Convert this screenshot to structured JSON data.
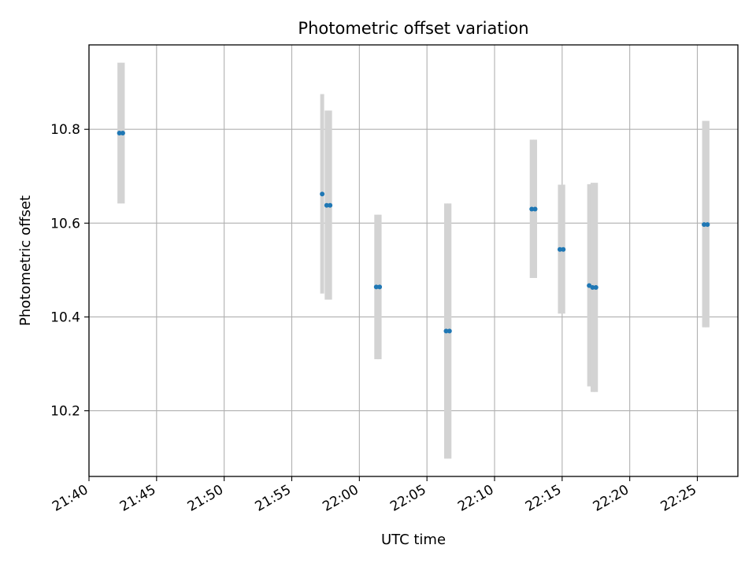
{
  "chart_data": {
    "type": "scatter",
    "title": "Photometric offset variation",
    "xlabel": "UTC time",
    "ylabel": "Photometric offset",
    "x_axis_type": "time",
    "xlim": [
      "21:40",
      "22:28"
    ],
    "ylim": [
      10.06,
      10.98
    ],
    "x_ticks": [
      "21:40",
      "21:45",
      "21:50",
      "21:55",
      "22:00",
      "22:05",
      "22:10",
      "22:15",
      "22:20",
      "22:25"
    ],
    "y_ticks": [
      10.2,
      10.4,
      10.6,
      10.8
    ],
    "y_tick_labels": [
      "10.2",
      "10.4",
      "10.6",
      "10.8"
    ],
    "grid": true,
    "marker_color": "#1f77b4",
    "errorbar_color": "#d3d3d3",
    "series": [
      {
        "points": [
          {
            "x": "21:42:15",
            "y": 10.792,
            "ylow": 10.642,
            "yhigh": 10.942
          },
          {
            "x": "21:42:30",
            "y": 10.792,
            "ylow": 10.642,
            "yhigh": 10.942
          },
          {
            "x": "21:57:15",
            "y": 10.662,
            "ylow": 10.45,
            "yhigh": 10.875
          },
          {
            "x": "21:57:35",
            "y": 10.638,
            "ylow": 10.437,
            "yhigh": 10.84
          },
          {
            "x": "21:57:50",
            "y": 10.638,
            "ylow": 10.437,
            "yhigh": 10.84
          },
          {
            "x": "22:01:15",
            "y": 10.464,
            "ylow": 10.31,
            "yhigh": 10.618
          },
          {
            "x": "22:01:30",
            "y": 10.464,
            "ylow": 10.31,
            "yhigh": 10.618
          },
          {
            "x": "22:06:25",
            "y": 10.37,
            "ylow": 10.098,
            "yhigh": 10.642
          },
          {
            "x": "22:06:40",
            "y": 10.37,
            "ylow": 10.098,
            "yhigh": 10.642
          },
          {
            "x": "22:12:45",
            "y": 10.63,
            "ylow": 10.483,
            "yhigh": 10.778
          },
          {
            "x": "22:13:00",
            "y": 10.63,
            "ylow": 10.483,
            "yhigh": 10.778
          },
          {
            "x": "22:14:50",
            "y": 10.544,
            "ylow": 10.407,
            "yhigh": 10.682
          },
          {
            "x": "22:15:05",
            "y": 10.544,
            "ylow": 10.407,
            "yhigh": 10.682
          },
          {
            "x": "22:17:00",
            "y": 10.467,
            "ylow": 10.252,
            "yhigh": 10.683
          },
          {
            "x": "22:17:15",
            "y": 10.463,
            "ylow": 10.24,
            "yhigh": 10.686
          },
          {
            "x": "22:17:30",
            "y": 10.463,
            "ylow": 10.24,
            "yhigh": 10.686
          },
          {
            "x": "22:25:30",
            "y": 10.597,
            "ylow": 10.378,
            "yhigh": 10.818
          },
          {
            "x": "22:25:45",
            "y": 10.597,
            "ylow": 10.378,
            "yhigh": 10.818
          }
        ]
      }
    ]
  }
}
